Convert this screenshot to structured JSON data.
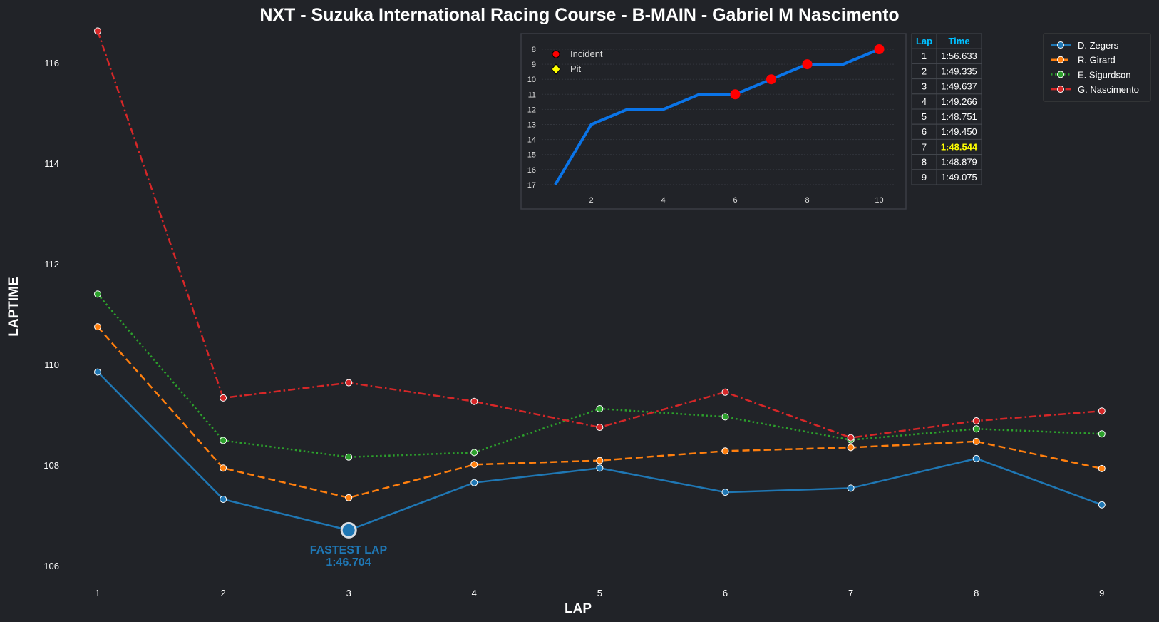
{
  "chart_data": [
    {
      "type": "line",
      "title": "NXT - Suzuka International Racing Course - B-MAIN - Gabriel M Nascimento",
      "xlabel": "LAP",
      "ylabel": "LAPTIME",
      "x": [
        1,
        2,
        3,
        4,
        5,
        6,
        7,
        8,
        9
      ],
      "xticks": [
        "1",
        "2",
        "3",
        "4",
        "5",
        "6",
        "7",
        "8",
        "9"
      ],
      "yticks": [
        "106",
        "108",
        "110",
        "112",
        "114",
        "116"
      ],
      "ylim": [
        105.6,
        116.6
      ],
      "grid": false,
      "legend_position": "top-right",
      "series": [
        {
          "name": "D. Zegers",
          "color": "#1f77b4",
          "style": "solid",
          "values": [
            109.85,
            107.32,
            106.704,
            107.65,
            107.94,
            107.46,
            107.54,
            108.13,
            107.21
          ]
        },
        {
          "name": "R. Girard",
          "color": "#ff7f0e",
          "style": "dashed",
          "values": [
            110.75,
            107.94,
            107.35,
            108.01,
            108.09,
            108.28,
            108.35,
            108.47,
            107.93
          ]
        },
        {
          "name": "E. Sigurdson",
          "color": "#2ca02c",
          "style": "dotted",
          "values": [
            111.4,
            108.49,
            108.16,
            108.25,
            109.12,
            108.96,
            108.5,
            108.72,
            108.62
          ]
        },
        {
          "name": "G. Nascimento",
          "color": "#d62728",
          "style": "dashdot",
          "values": [
            116.633,
            109.335,
            109.637,
            109.266,
            108.751,
            109.45,
            108.544,
            108.879,
            109.075
          ]
        }
      ],
      "annotation": {
        "label": "FASTEST LAP",
        "value": "1:46.704",
        "series": "D. Zegers",
        "lap": 3,
        "color": "#1f77b4"
      }
    },
    {
      "type": "line",
      "title": "",
      "x": [
        1,
        2,
        3,
        4,
        5,
        6,
        7,
        8,
        9,
        10
      ],
      "values": [
        17,
        13,
        12,
        12,
        11,
        11,
        10,
        9,
        9,
        8
      ],
      "color": "#0a74e8",
      "xticks": [
        "2",
        "4",
        "6",
        "8",
        "10"
      ],
      "yticks": [
        "8",
        "9",
        "10",
        "11",
        "12",
        "13",
        "14",
        "15",
        "16",
        "17"
      ],
      "ylim": [
        17,
        8
      ],
      "y_inverted": true,
      "incident_laps": [
        6,
        7,
        8,
        10
      ],
      "pit_laps": [],
      "legend": [
        {
          "label": "Incident",
          "color": "#ff0000"
        },
        {
          "label": "Pit",
          "color": "#ffff00"
        }
      ]
    },
    {
      "type": "table",
      "headers": [
        "Lap",
        "Time"
      ],
      "rows": [
        [
          "1",
          "1:56.633"
        ],
        [
          "2",
          "1:49.335"
        ],
        [
          "3",
          "1:49.637"
        ],
        [
          "4",
          "1:49.266"
        ],
        [
          "5",
          "1:48.751"
        ],
        [
          "6",
          "1:49.450"
        ],
        [
          "7",
          "1:48.544"
        ],
        [
          "8",
          "1:48.879"
        ],
        [
          "9",
          "1:49.075"
        ]
      ],
      "highlight_row": 6,
      "header_color": "#00bfff",
      "highlight_color": "#ffff00"
    }
  ]
}
